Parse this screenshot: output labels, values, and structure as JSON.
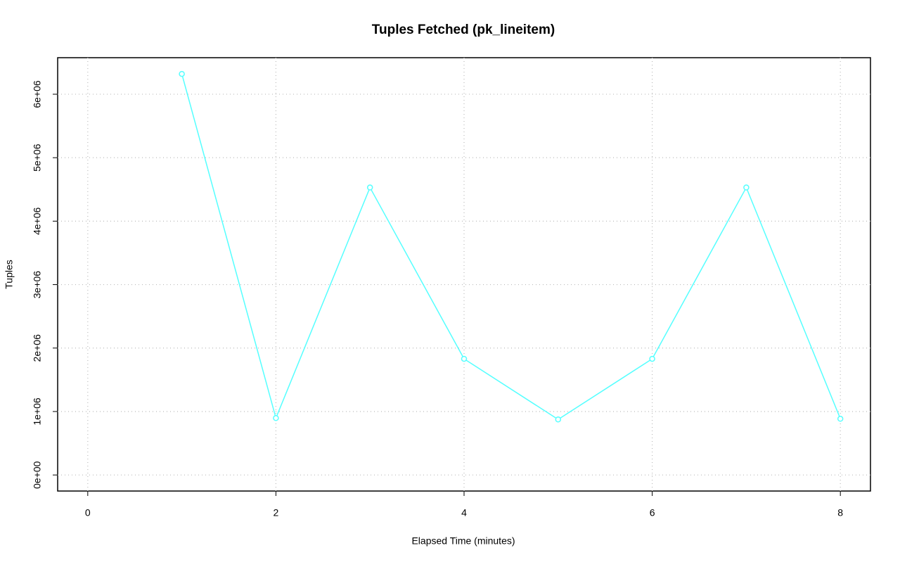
{
  "chart_data": {
    "type": "line",
    "title": "Tuples Fetched (pk_lineitem)",
    "x_label": "Elapsed Time (minutes)",
    "y_label": "Tuples",
    "x": [
      1,
      2,
      3,
      4,
      5,
      6,
      7,
      8
    ],
    "series": [
      {
        "name": "pk_lineitem",
        "color": "#55ffff",
        "values": [
          6320000,
          897000,
          4530000,
          1830000,
          875000,
          1830000,
          4530000,
          886000
        ]
      }
    ],
    "xlim": [
      -0.32,
      8.32
    ],
    "xticks": [
      0,
      2,
      4,
      6,
      8
    ],
    "ylim": [
      -253000,
      6576000
    ],
    "yticks": [
      {
        "value": 0,
        "label": "0e+00"
      },
      {
        "value": 1000000,
        "label": "1e+06"
      },
      {
        "value": 2000000,
        "label": "2e+06"
      },
      {
        "value": 3000000,
        "label": "3e+06"
      },
      {
        "value": 4000000,
        "label": "4e+06"
      },
      {
        "value": 5000000,
        "label": "5e+06"
      },
      {
        "value": 6000000,
        "label": "6e+06"
      }
    ],
    "grid": true
  }
}
